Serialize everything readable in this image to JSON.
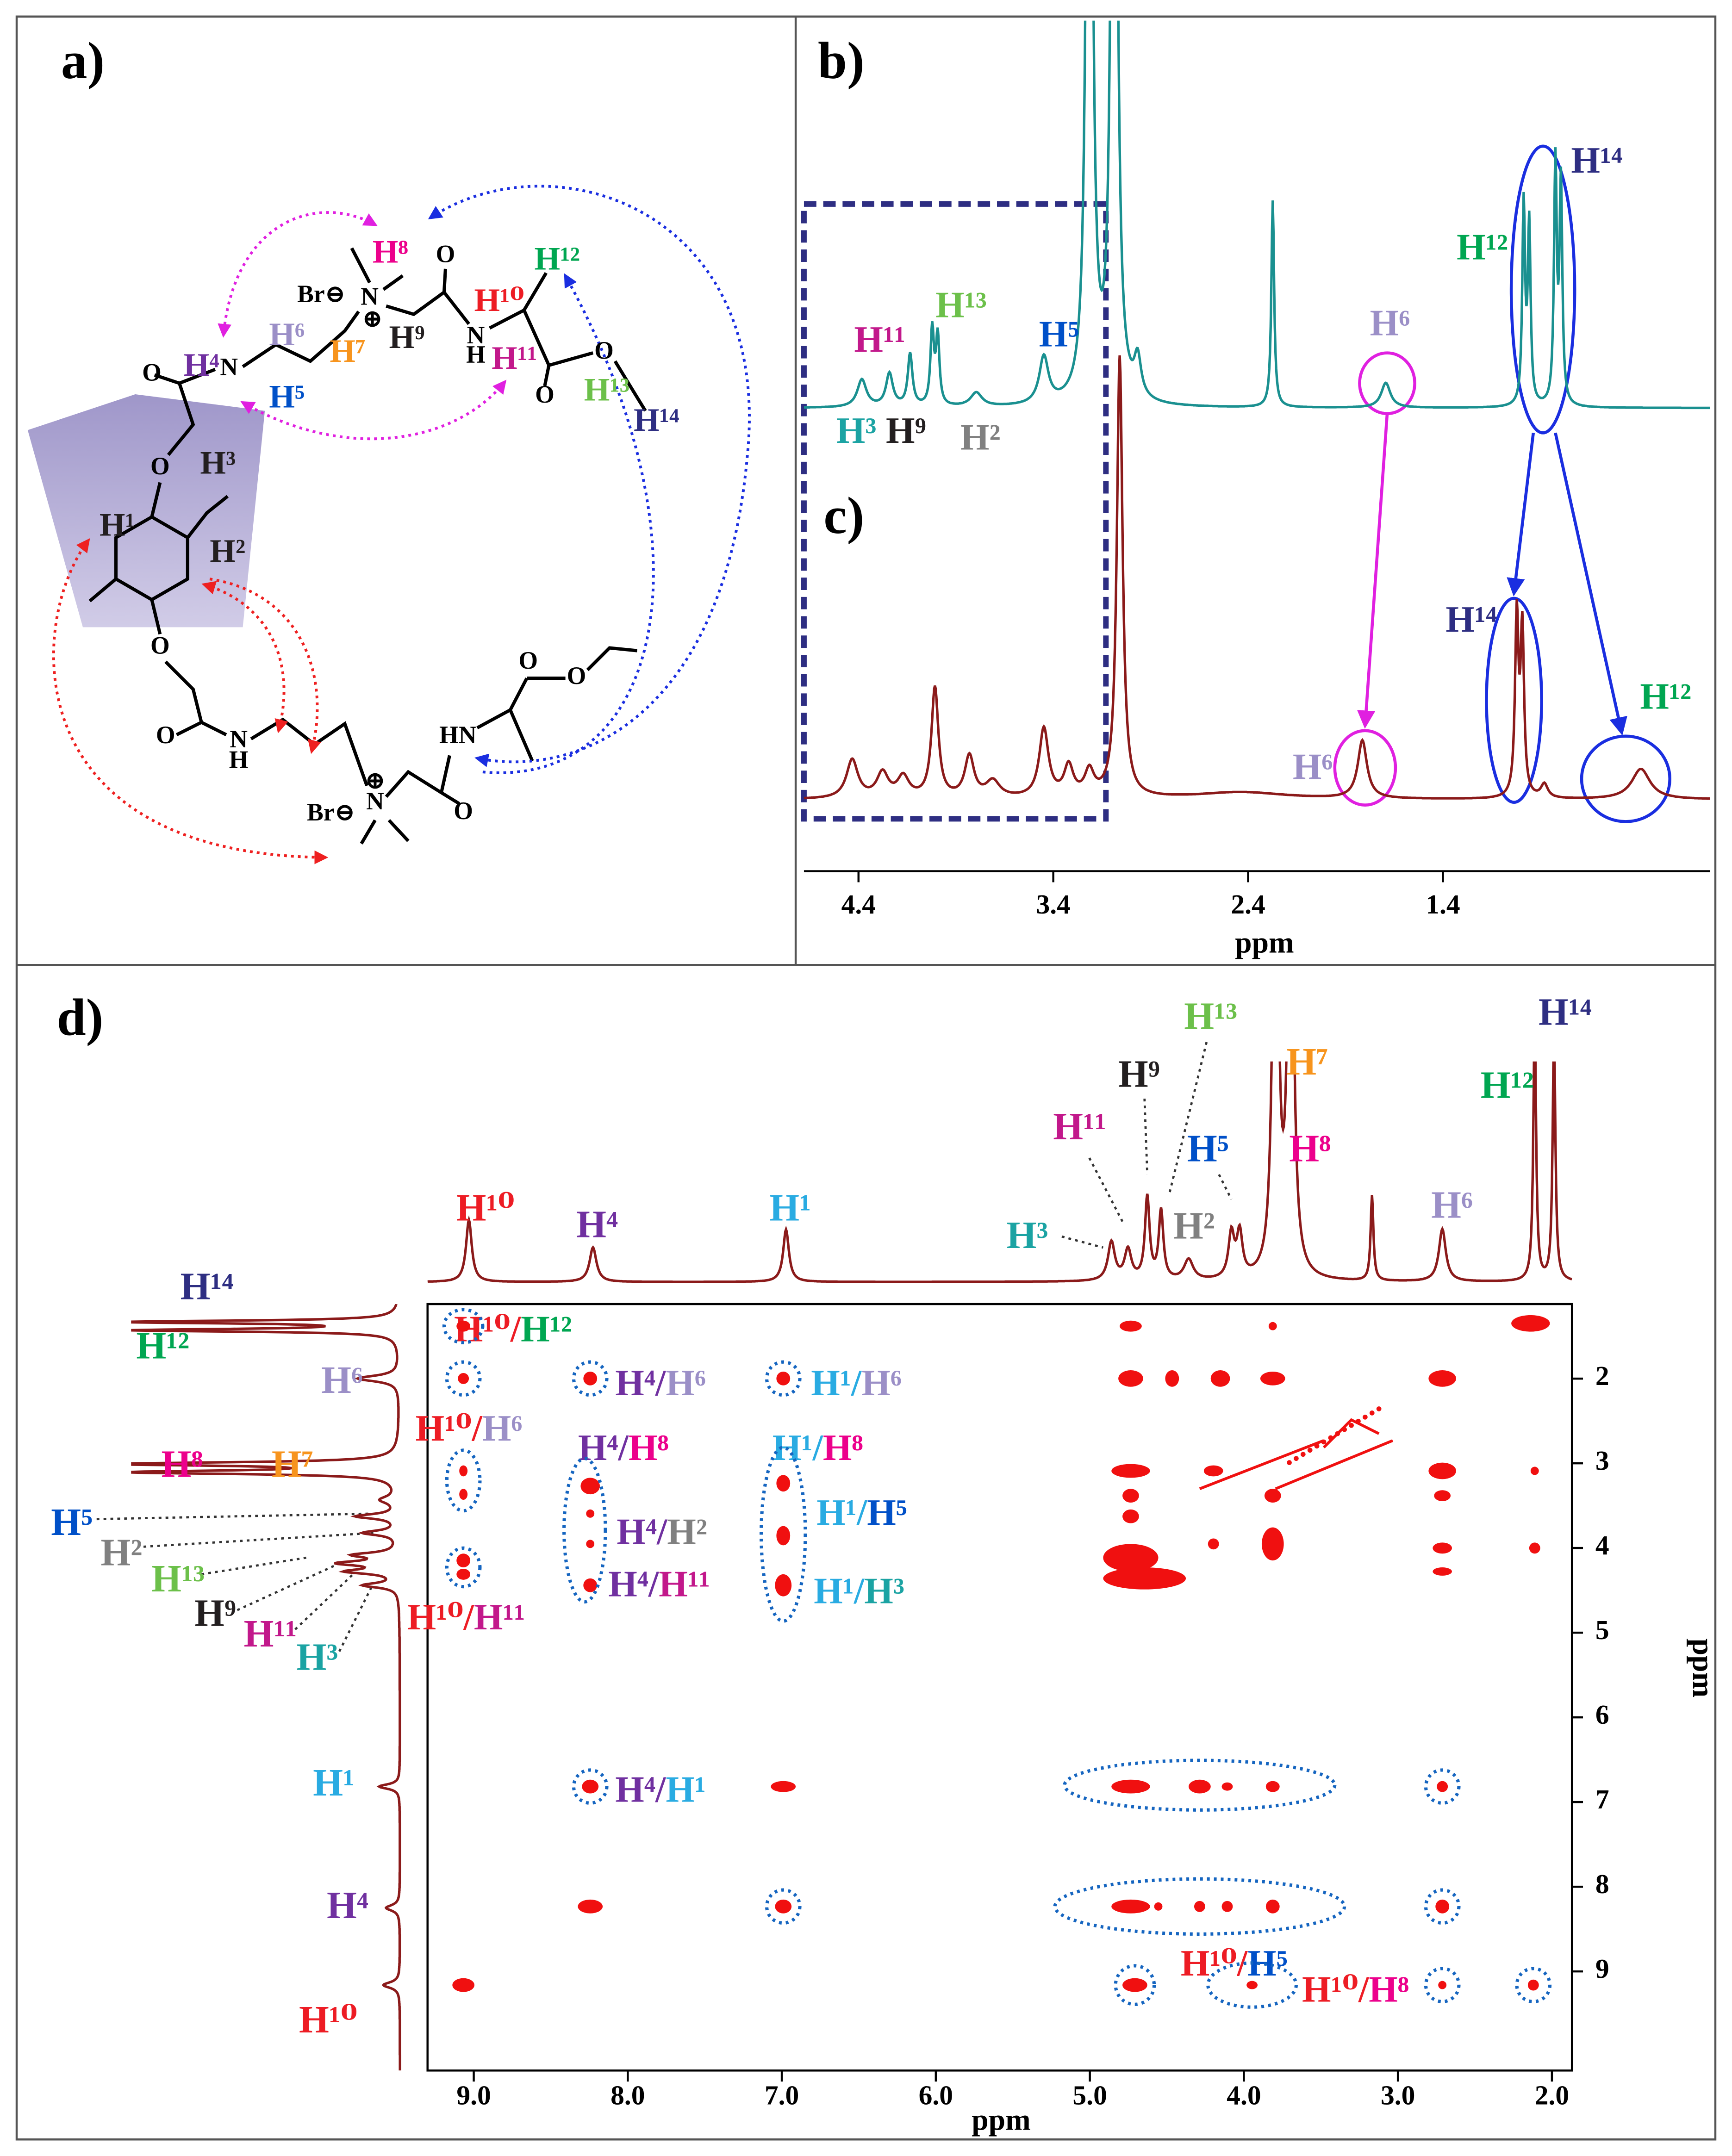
{
  "a": {
    "label": "a)",
    "protons": [
      "H⁸",
      "H¹²",
      "H¹⁰",
      "H⁶",
      "H⁷",
      "H⁹",
      "H⁴",
      "H¹¹",
      "H¹³",
      "H⁵",
      "H¹⁴",
      "H³",
      "H¹",
      "H²"
    ],
    "atoms": [
      "Br⊖",
      "N",
      "⊕",
      "O",
      "N",
      "H",
      "O",
      "O",
      "N",
      "O",
      "O",
      "O",
      "O",
      "N",
      "H",
      "Br⊖",
      "N",
      "⊕",
      "O",
      "HN",
      "O",
      "O"
    ]
  },
  "b": {
    "label": "b)",
    "protons": [
      "H¹¹",
      "H¹³",
      "H⁵",
      "H³",
      "H⁹",
      "H²",
      "H⁶",
      "H¹²",
      "H¹⁴"
    ]
  },
  "c": {
    "label": "c)",
    "protons": [
      "H¹⁴",
      "H⁶",
      "H¹²"
    ]
  },
  "bc_axis": {
    "label": "ppm",
    "xlim": [
      4.68,
      0.03
    ],
    "xticks": [
      4.4,
      3.4,
      2.4,
      1.4
    ]
  },
  "d": {
    "label": "d)",
    "top_protons": [
      "H¹⁰",
      "H⁴",
      "H¹",
      "H³",
      "H¹¹",
      "H⁹",
      "H¹³",
      "H⁵",
      "H²",
      "H⁷",
      "H⁸",
      "H⁶",
      "H¹²",
      "H¹⁴"
    ],
    "left_protons": [
      "H¹⁴",
      "H¹²",
      "H⁶",
      "H⁸",
      "H⁷",
      "H⁵",
      "H²",
      "H¹³",
      "H⁹",
      "H¹¹",
      "H³",
      "H¹",
      "H⁴",
      "H¹⁰"
    ],
    "cross_peaks": [
      [
        "H¹⁰",
        "/",
        "H¹²"
      ],
      [
        "H⁴",
        "/",
        "H⁶"
      ],
      [
        "H¹",
        "/",
        "H⁶"
      ],
      [
        "H¹⁰",
        "/",
        "H⁶"
      ],
      [
        "H⁴",
        "/",
        "H⁸"
      ],
      [
        "H¹",
        "/",
        "H⁸"
      ],
      [
        "H⁴",
        "/",
        "H²"
      ],
      [
        "H¹",
        "/",
        "H⁵"
      ],
      [
        "H⁴",
        "/",
        "H¹¹"
      ],
      [
        "H¹",
        "/",
        "H³"
      ],
      [
        "H¹⁰",
        "/",
        "H¹¹"
      ],
      [
        "H⁴",
        "/",
        "H¹"
      ],
      [
        "H¹⁰",
        "/",
        "H⁵"
      ],
      [
        "H¹⁰",
        "/",
        "H⁸"
      ]
    ],
    "x_axis": {
      "label": "ppm",
      "xlim": [
        9.3,
        1.87
      ],
      "xticks": [
        {
          "value": 9,
          "label": "9.0"
        },
        {
          "value": 8,
          "label": "8.0"
        },
        {
          "value": 7,
          "label": "7.0"
        },
        {
          "value": 6,
          "label": "6.0"
        },
        {
          "value": 5,
          "label": "5.0"
        },
        {
          "value": 4,
          "label": "4.0"
        },
        {
          "value": 3,
          "label": "3.0"
        },
        {
          "value": 2,
          "label": "2.0"
        }
      ]
    },
    "y_axis": {
      "label": "ppm",
      "ylim": [
        1.12,
        10.17
      ],
      "yticks": [
        2,
        3,
        4,
        5,
        6,
        7,
        8,
        9
      ]
    }
  }
}
